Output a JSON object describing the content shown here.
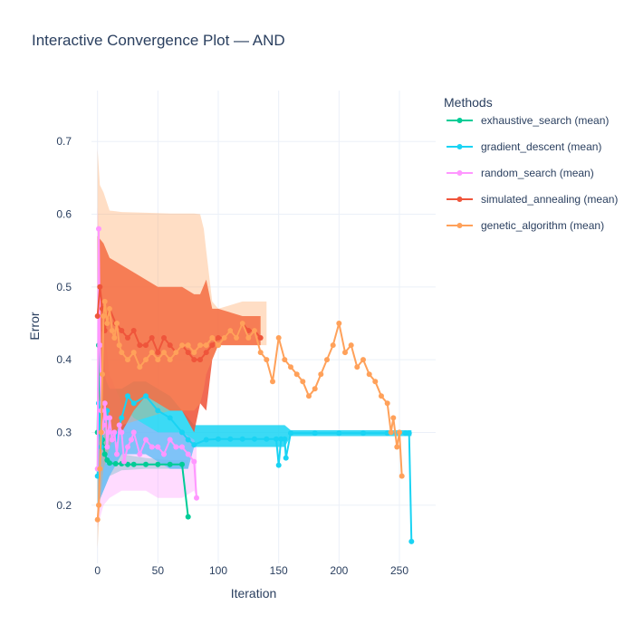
{
  "chart_data": {
    "type": "line",
    "title": "Interactive Convergence Plot — AND",
    "xlabel": "Iteration",
    "ylabel": "Error",
    "xlim": [
      -5,
      280
    ],
    "ylim": [
      0.12,
      0.77
    ],
    "x_ticks": [
      0,
      50,
      100,
      150,
      200,
      250
    ],
    "y_ticks": [
      0.2,
      0.3,
      0.4,
      0.5,
      0.6,
      0.7
    ],
    "x_tick_labels": [
      "0",
      "50",
      "100",
      "150",
      "200",
      "250"
    ],
    "y_tick_labels": [
      "0.2",
      "0.3",
      "0.4",
      "0.5",
      "0.6",
      "0.7"
    ],
    "grid": true,
    "legend": {
      "title": "Methods",
      "placement": "top-right",
      "entries": [
        "exhaustive_search (mean)",
        "gradient_descent (mean)",
        "random_search (mean)",
        "simulated_annealing (mean)",
        "genetic_algorithm (mean)"
      ]
    },
    "series": [
      {
        "name": "exhaustive_search (mean)",
        "color": "#00cc96",
        "x": [
          0,
          1,
          2,
          3,
          4,
          5,
          6,
          8,
          10,
          15,
          20,
          25,
          30,
          40,
          50,
          60,
          70,
          75
        ],
        "y": [
          0.3,
          0.42,
          0.36,
          0.31,
          0.29,
          0.28,
          0.27,
          0.262,
          0.258,
          0.257,
          0.257,
          0.256,
          0.256,
          0.256,
          0.256,
          0.256,
          0.256,
          0.184
        ],
        "band": {
          "x": [
            0,
            5,
            10,
            20,
            40,
            60,
            75
          ],
          "upper": [
            0.53,
            0.42,
            0.3,
            0.27,
            0.265,
            0.262,
            0.262
          ],
          "lower": [
            0.2,
            0.22,
            0.24,
            0.248,
            0.25,
            0.25,
            0.25
          ]
        }
      },
      {
        "name": "gradient_descent (mean)",
        "color": "#19d3f3",
        "x": [
          0,
          1,
          2,
          3,
          5,
          8,
          10,
          15,
          20,
          25,
          30,
          40,
          50,
          60,
          70,
          75,
          80,
          90,
          100,
          110,
          120,
          130,
          140,
          148,
          150,
          152,
          155,
          156,
          160,
          180,
          200,
          220,
          240,
          255,
          258,
          260
        ],
        "y": [
          0.24,
          0.34,
          0.3,
          0.28,
          0.31,
          0.33,
          0.3,
          0.29,
          0.32,
          0.35,
          0.34,
          0.35,
          0.33,
          0.32,
          0.3,
          0.29,
          0.283,
          0.29,
          0.291,
          0.291,
          0.291,
          0.291,
          0.291,
          0.291,
          0.255,
          0.291,
          0.291,
          0.265,
          0.299,
          0.299,
          0.299,
          0.299,
          0.299,
          0.299,
          0.299,
          0.15
        ],
        "band": {
          "x": [
            0,
            10,
            20,
            30,
            40,
            50,
            60,
            70,
            75,
            80,
            100,
            120,
            150,
            155,
            160,
            260
          ],
          "upper": [
            0.4,
            0.36,
            0.36,
            0.37,
            0.37,
            0.36,
            0.35,
            0.33,
            0.32,
            0.31,
            0.31,
            0.31,
            0.31,
            0.31,
            0.303,
            0.303
          ],
          "lower": [
            0.2,
            0.24,
            0.27,
            0.27,
            0.27,
            0.26,
            0.25,
            0.25,
            0.25,
            0.28,
            0.28,
            0.28,
            0.28,
            0.28,
            0.295,
            0.295
          ]
        }
      },
      {
        "name": "random_search (mean)",
        "color": "#ff97ff",
        "x": [
          0,
          1,
          2,
          3,
          4,
          5,
          6,
          7,
          8,
          9,
          10,
          12,
          14,
          16,
          18,
          20,
          22,
          25,
          28,
          30,
          35,
          40,
          45,
          50,
          55,
          60,
          65,
          70,
          75,
          80,
          82
        ],
        "y": [
          0.25,
          0.58,
          0.42,
          0.33,
          0.3,
          0.31,
          0.34,
          0.32,
          0.28,
          0.3,
          0.32,
          0.29,
          0.3,
          0.27,
          0.31,
          0.3,
          0.26,
          0.28,
          0.29,
          0.3,
          0.27,
          0.29,
          0.28,
          0.28,
          0.27,
          0.29,
          0.28,
          0.28,
          0.27,
          0.26,
          0.21
        ],
        "band": {
          "x": [
            0,
            5,
            10,
            20,
            30,
            40,
            50,
            60,
            70,
            80,
            82
          ],
          "upper": [
            0.61,
            0.45,
            0.38,
            0.34,
            0.32,
            0.31,
            0.3,
            0.3,
            0.3,
            0.29,
            0.28
          ],
          "lower": [
            0.17,
            0.2,
            0.21,
            0.22,
            0.22,
            0.22,
            0.21,
            0.21,
            0.21,
            0.22,
            0.21
          ]
        }
      },
      {
        "name": "simulated_annealing (mean)",
        "color": "#ef553b",
        "x": [
          0,
          2,
          4,
          6,
          8,
          10,
          15,
          20,
          25,
          30,
          35,
          40,
          45,
          50,
          55,
          60,
          65,
          70,
          75,
          80,
          85,
          90,
          95,
          100,
          105,
          110,
          115,
          120,
          125,
          130,
          135
        ],
        "y": [
          0.46,
          0.5,
          0.47,
          0.44,
          0.46,
          0.47,
          0.45,
          0.44,
          0.43,
          0.44,
          0.42,
          0.42,
          0.43,
          0.41,
          0.43,
          0.42,
          0.41,
          0.42,
          0.41,
          0.4,
          0.4,
          0.41,
          0.42,
          0.43,
          0.43,
          0.44,
          0.43,
          0.45,
          0.44,
          0.44,
          0.43
        ],
        "band": {
          "x": [
            0,
            5,
            10,
            20,
            30,
            40,
            50,
            60,
            70,
            80,
            85,
            90,
            95,
            100,
            120,
            135
          ],
          "upper": [
            0.57,
            0.56,
            0.54,
            0.53,
            0.52,
            0.51,
            0.5,
            0.5,
            0.5,
            0.49,
            0.49,
            0.51,
            0.47,
            0.47,
            0.46,
            0.46
          ],
          "lower": [
            0.36,
            0.31,
            0.3,
            0.3,
            0.33,
            0.35,
            0.34,
            0.33,
            0.33,
            0.3,
            0.34,
            0.33,
            0.4,
            0.42,
            0.42,
            0.42
          ]
        }
      },
      {
        "name": "genetic_algorithm (mean)",
        "color": "#ffa15a",
        "x": [
          0,
          1,
          2,
          3,
          4,
          5,
          6,
          8,
          10,
          12,
          14,
          16,
          18,
          20,
          25,
          30,
          35,
          40,
          45,
          50,
          55,
          60,
          65,
          70,
          75,
          80,
          85,
          90,
          95,
          100,
          105,
          110,
          115,
          120,
          125,
          130,
          135,
          140,
          145,
          150,
          155,
          160,
          165,
          170,
          175,
          180,
          185,
          190,
          195,
          200,
          205,
          210,
          215,
          220,
          225,
          230,
          235,
          240,
          243,
          245,
          248,
          250,
          252
        ],
        "y": [
          0.18,
          0.2,
          0.25,
          0.3,
          0.38,
          0.46,
          0.48,
          0.45,
          0.47,
          0.44,
          0.43,
          0.45,
          0.42,
          0.41,
          0.4,
          0.41,
          0.39,
          0.4,
          0.41,
          0.4,
          0.41,
          0.4,
          0.41,
          0.42,
          0.42,
          0.41,
          0.42,
          0.42,
          0.43,
          0.42,
          0.43,
          0.44,
          0.43,
          0.45,
          0.43,
          0.44,
          0.41,
          0.4,
          0.37,
          0.43,
          0.4,
          0.39,
          0.38,
          0.37,
          0.35,
          0.36,
          0.38,
          0.4,
          0.42,
          0.45,
          0.41,
          0.42,
          0.39,
          0.4,
          0.38,
          0.37,
          0.35,
          0.34,
          0.3,
          0.32,
          0.28,
          0.3,
          0.24
        ],
        "band": {
          "x": [
            0,
            2,
            5,
            10,
            15,
            20,
            40,
            60,
            80,
            85,
            88,
            90,
            95,
            100,
            120,
            140
          ],
          "upper": [
            0.69,
            0.64,
            0.63,
            0.605,
            0.604,
            0.603,
            0.602,
            0.601,
            0.601,
            0.6,
            0.58,
            0.55,
            0.48,
            0.47,
            0.48,
            0.48
          ],
          "lower": [
            0.14,
            0.2,
            0.25,
            0.28,
            0.3,
            0.31,
            0.32,
            0.33,
            0.33,
            0.34,
            0.36,
            0.38,
            0.4,
            0.42,
            0.42,
            0.42
          ]
        }
      }
    ]
  }
}
